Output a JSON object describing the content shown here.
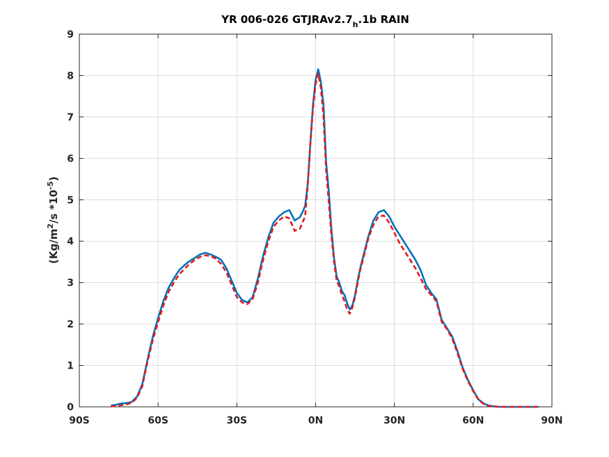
{
  "chart_data": {
    "type": "line",
    "title": {
      "main": "YR 006-026 GTJRAv2.7",
      "subscript": "h",
      "rest": ".1b RAIN"
    },
    "ylabel": {
      "prefix": "(Kg/m",
      "sup1": "2",
      "mid": "/s  *10",
      "sup2": "-5",
      "suffix": ")"
    },
    "xlim": [
      -90,
      90
    ],
    "ylim": [
      0,
      9
    ],
    "xticks": [
      -90,
      -60,
      -30,
      0,
      30,
      60,
      90
    ],
    "xtick_labels": [
      "90S",
      "60S",
      "30S",
      "0N",
      "30N",
      "60N",
      "90N"
    ],
    "yticks": [
      0,
      1,
      2,
      3,
      4,
      5,
      6,
      7,
      8,
      9
    ],
    "ytick_labels": [
      "0",
      "1",
      "2",
      "3",
      "4",
      "5",
      "6",
      "7",
      "8",
      "9"
    ],
    "grid": true,
    "series": [
      {
        "color": "#0072bd",
        "style": "solid",
        "x": [
          -78,
          -76,
          -74,
          -72,
          -70,
          -68,
          -66,
          -64,
          -62,
          -60,
          -58,
          -56,
          -54,
          -52,
          -50,
          -48,
          -46,
          -44,
          -42,
          -40,
          -38,
          -36,
          -34,
          -32,
          -30,
          -28,
          -26,
          -24,
          -22,
          -20,
          -18,
          -16,
          -14,
          -12,
          -10,
          -8,
          -6,
          -5,
          -4,
          -3,
          -2,
          -1,
          0,
          1,
          2,
          3,
          4,
          5,
          6,
          7,
          8,
          9,
          10,
          11,
          12,
          13,
          14,
          15,
          16,
          17,
          18,
          19,
          20,
          22,
          24,
          26,
          28,
          30,
          32,
          34,
          36,
          38,
          40,
          42,
          44,
          46,
          48,
          50,
          52,
          54,
          56,
          58,
          60,
          62,
          64,
          66,
          68,
          70,
          72,
          74,
          76,
          78,
          80,
          82,
          84,
          85
        ],
        "y": [
          0.03,
          0.05,
          0.08,
          0.09,
          0.12,
          0.25,
          0.55,
          1.15,
          1.7,
          2.15,
          2.55,
          2.88,
          3.1,
          3.3,
          3.42,
          3.52,
          3.6,
          3.68,
          3.72,
          3.68,
          3.62,
          3.55,
          3.35,
          3.05,
          2.75,
          2.58,
          2.52,
          2.65,
          3.1,
          3.65,
          4.1,
          4.45,
          4.6,
          4.7,
          4.75,
          4.5,
          4.58,
          4.7,
          4.85,
          5.4,
          6.4,
          7.3,
          7.9,
          8.15,
          7.85,
          7.3,
          5.9,
          5.2,
          4.3,
          3.6,
          3.15,
          3.0,
          2.8,
          2.7,
          2.5,
          2.35,
          2.45,
          2.7,
          3.05,
          3.35,
          3.6,
          3.85,
          4.1,
          4.5,
          4.7,
          4.75,
          4.6,
          4.35,
          4.15,
          3.95,
          3.75,
          3.55,
          3.3,
          2.95,
          2.75,
          2.6,
          2.1,
          1.9,
          1.7,
          1.35,
          0.95,
          0.65,
          0.4,
          0.18,
          0.08,
          0.03,
          0.01,
          0.0,
          0.0,
          0.0,
          0.0,
          0.0,
          0.0,
          0.0,
          0.0,
          0.0
        ]
      },
      {
        "color": "#e41a1c",
        "style": "dashed",
        "x": [
          -78,
          -76,
          -74,
          -72,
          -70,
          -68,
          -66,
          -64,
          -62,
          -60,
          -58,
          -56,
          -54,
          -52,
          -50,
          -48,
          -46,
          -44,
          -42,
          -40,
          -38,
          -36,
          -34,
          -32,
          -30,
          -28,
          -26,
          -24,
          -22,
          -20,
          -18,
          -16,
          -14,
          -12,
          -10,
          -8,
          -6,
          -5,
          -4,
          -3,
          -2,
          -1,
          0,
          1,
          2,
          3,
          4,
          5,
          6,
          7,
          8,
          9,
          10,
          11,
          12,
          13,
          14,
          15,
          16,
          17,
          18,
          19,
          20,
          22,
          24,
          26,
          28,
          30,
          32,
          34,
          36,
          38,
          40,
          42,
          44,
          46,
          48,
          50,
          52,
          54,
          56,
          58,
          60,
          62,
          64,
          66,
          68,
          70,
          72,
          74,
          76,
          78,
          80,
          82,
          84,
          85
        ],
        "y": [
          0.01,
          0.02,
          0.04,
          0.06,
          0.1,
          0.22,
          0.5,
          1.1,
          1.62,
          2.05,
          2.45,
          2.78,
          3.0,
          3.2,
          3.33,
          3.45,
          3.55,
          3.62,
          3.66,
          3.64,
          3.58,
          3.45,
          3.25,
          2.95,
          2.65,
          2.52,
          2.48,
          2.6,
          3.0,
          3.55,
          4.0,
          4.35,
          4.5,
          4.6,
          4.55,
          4.25,
          4.3,
          4.45,
          4.6,
          5.35,
          6.35,
          7.2,
          7.8,
          8.05,
          7.7,
          7.0,
          5.7,
          4.95,
          4.15,
          3.5,
          3.05,
          2.9,
          2.7,
          2.55,
          2.35,
          2.25,
          2.4,
          2.65,
          3.0,
          3.3,
          3.55,
          3.8,
          4.05,
          4.4,
          4.6,
          4.62,
          4.45,
          4.2,
          3.95,
          3.75,
          3.55,
          3.35,
          3.1,
          2.85,
          2.7,
          2.55,
          2.05,
          1.88,
          1.65,
          1.3,
          0.92,
          0.62,
          0.38,
          0.17,
          0.07,
          0.02,
          0.01,
          0.0,
          0.0,
          0.0,
          0.0,
          0.0,
          0.0,
          0.0,
          0.0,
          0.0
        ]
      }
    ]
  }
}
